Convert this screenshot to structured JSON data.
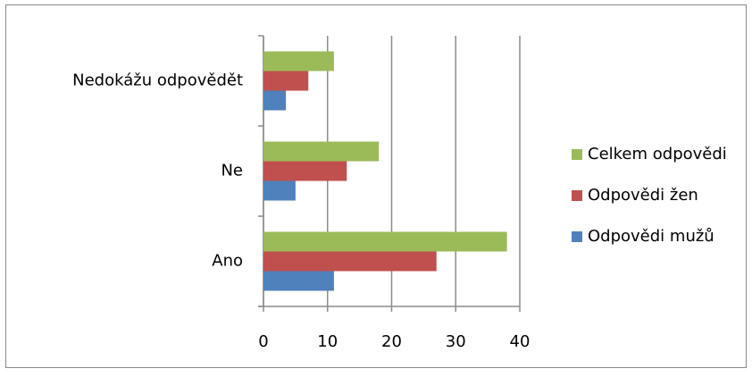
{
  "chart_data": {
    "type": "bar",
    "orientation": "horizontal",
    "categories": [
      "Ano",
      "Ne",
      "Nedokážu odpovědět"
    ],
    "series": [
      {
        "name": "Odpovědi mužů",
        "color": "#4f81bd",
        "values": [
          11,
          5,
          3.5
        ]
      },
      {
        "name": "Odpovědi žen",
        "color": "#c0504d",
        "values": [
          27,
          13,
          7
        ]
      },
      {
        "name": "Celkem odpovědi",
        "color": "#9bbb59",
        "values": [
          38,
          18,
          11
        ]
      }
    ],
    "xlim": [
      0,
      40
    ],
    "xticks": [
      0,
      10,
      20,
      30,
      40
    ],
    "grid": true,
    "legend": "right"
  }
}
